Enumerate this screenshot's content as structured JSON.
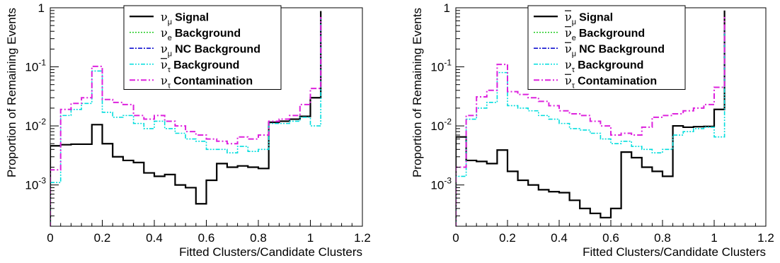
{
  "chart_data": [
    {
      "type": "step-histogram",
      "xlabel": "Fitted Clusters/Candidate Clusters",
      "ylabel": "Proportion of Remaining Events",
      "xlim": [
        0,
        1.2
      ],
      "ylim": [
        0.0002,
        1.0
      ],
      "yscale": "log",
      "x_ticks": [
        "0",
        "0.2",
        "0.4",
        "0.6",
        "0.8",
        "1",
        "1.2"
      ],
      "legend_position": "top-center",
      "bin_edges": [
        0,
        0.04,
        0.08,
        0.12,
        0.16,
        0.2,
        0.24,
        0.28,
        0.32,
        0.36,
        0.4,
        0.44,
        0.48,
        0.52,
        0.56,
        0.6,
        0.64,
        0.68,
        0.72,
        0.76,
        0.8,
        0.84,
        0.88,
        0.92,
        0.96,
        1.0,
        1.04
      ],
      "series": [
        {
          "label": "Signal",
          "nu": "ν",
          "bar": false,
          "sub": "μ",
          "color": "#000000",
          "dash": "",
          "width": 2.2,
          "values": [
            0.0046,
            0.0048,
            0.0049,
            0.0049,
            0.0105,
            0.005,
            0.003,
            0.0026,
            0.0024,
            0.0016,
            0.0014,
            0.0015,
            0.001,
            0.0009,
            0.00048,
            0.0012,
            0.0023,
            0.002,
            0.0021,
            0.002,
            0.0019,
            0.0115,
            0.012,
            0.013,
            0.0145,
            0.03,
            0.88
          ]
        },
        {
          "label": "Background",
          "nu": "ν",
          "bar": false,
          "sub": "e",
          "color": "#22cc22",
          "dash": "2,2",
          "width": 1.6,
          "values": [
            0.0,
            0.0,
            0.0,
            0.0,
            0.0,
            0.0,
            0.0,
            0.0,
            0.0,
            0.0,
            0.0,
            0.0,
            0.0,
            0.0,
            0.0,
            0.0,
            0.0,
            0.0,
            0.0,
            0.0,
            0.0,
            0.0,
            0.0,
            0.0,
            0.0,
            0.0,
            0.0
          ]
        },
        {
          "label": "NC Background",
          "nu": "ν",
          "bar": false,
          "sub": "μ",
          "color": "#0000cc",
          "dash": "6,2,2,2",
          "width": 1.6,
          "values": [
            0.0,
            0.0,
            0.0,
            0.0,
            0.0,
            0.0,
            0.0,
            0.0,
            0.0,
            0.0,
            0.0,
            0.0,
            0.0,
            0.0,
            0.0,
            0.0,
            0.0,
            0.0,
            0.0,
            0.0,
            0.0,
            0.0,
            0.0,
            0.0,
            0.0,
            0.0,
            0.0
          ]
        },
        {
          "label": "Background",
          "nu": "ν",
          "bar": true,
          "sub": "τ",
          "color": "#00dddd",
          "dash": "6,2,2,2,2,2",
          "width": 1.6,
          "values": [
            0.0011,
            0.015,
            0.019,
            0.024,
            0.085,
            0.017,
            0.014,
            0.015,
            0.011,
            0.009,
            0.012,
            0.009,
            0.0075,
            0.006,
            0.0055,
            0.004,
            0.004,
            0.0035,
            0.0045,
            0.0037,
            0.004,
            0.011,
            0.011,
            0.012,
            0.014,
            0.01,
            0.65
          ]
        },
        {
          "label": "Contamination",
          "nu": "ν",
          "bar": false,
          "sub": "τ",
          "color": "#dd22dd",
          "dash": "8,3,2,3",
          "width": 2.0,
          "values": [
            0.0018,
            0.019,
            0.024,
            0.03,
            0.102,
            0.028,
            0.025,
            0.023,
            0.015,
            0.013,
            0.015,
            0.012,
            0.01,
            0.008,
            0.007,
            0.006,
            0.0055,
            0.005,
            0.0065,
            0.006,
            0.007,
            0.012,
            0.013,
            0.015,
            0.023,
            0.043,
            0.7
          ]
        }
      ]
    },
    {
      "type": "step-histogram",
      "xlabel": "Fitted Clusters/Candidate Clusters",
      "ylabel": "Proportion of Remaining Events",
      "xlim": [
        0,
        1.2
      ],
      "ylim": [
        0.0002,
        1.0
      ],
      "yscale": "log",
      "x_ticks": [
        "0",
        "0.2",
        "0.4",
        "0.6",
        "0.8",
        "1",
        "1.2"
      ],
      "legend_position": "top-center",
      "bin_edges": [
        0,
        0.04,
        0.08,
        0.12,
        0.16,
        0.2,
        0.24,
        0.28,
        0.32,
        0.36,
        0.4,
        0.44,
        0.48,
        0.52,
        0.56,
        0.6,
        0.64,
        0.68,
        0.72,
        0.76,
        0.8,
        0.84,
        0.88,
        0.92,
        0.96,
        1.0,
        1.04
      ],
      "series": [
        {
          "label": "Signal",
          "nu": "ν",
          "bar": true,
          "sub": "μ",
          "color": "#000000",
          "dash": "",
          "width": 2.2,
          "values": [
            0.0065,
            0.0026,
            0.0025,
            0.0023,
            0.0039,
            0.0017,
            0.0012,
            0.001,
            0.00083,
            0.00077,
            0.00074,
            0.00055,
            0.0004,
            0.00033,
            0.00028,
            0.0004,
            0.0036,
            0.0029,
            0.002,
            0.0017,
            0.0014,
            0.01,
            0.0095,
            0.0097,
            0.0098,
            0.019,
            0.9
          ]
        },
        {
          "label": "Background",
          "nu": "ν",
          "bar": true,
          "sub": "e",
          "color": "#22cc22",
          "dash": "2,2",
          "width": 1.6,
          "values": [
            0.0,
            0.0,
            0.0,
            0.0,
            0.0,
            0.0,
            0.0,
            0.0,
            0.0,
            0.0,
            0.0,
            0.0,
            0.0,
            0.0,
            0.0,
            0.0,
            0.0,
            0.0,
            0.0,
            0.0,
            0.0,
            0.0,
            0.0,
            0.0,
            0.0,
            0.0,
            0.0
          ]
        },
        {
          "label": "NC Background",
          "nu": "ν",
          "bar": true,
          "sub": "μ",
          "color": "#0000cc",
          "dash": "6,2,2,2",
          "width": 1.6,
          "values": [
            0.0,
            0.0,
            0.0,
            0.0,
            0.0,
            0.0,
            0.0,
            0.0,
            0.0,
            0.0,
            0.0,
            0.0,
            0.0,
            0.0,
            0.0,
            0.0,
            0.0,
            0.0,
            0.0,
            0.0,
            0.0,
            0.0,
            0.0,
            0.0,
            0.0,
            0.0,
            0.0
          ]
        },
        {
          "label": "Background",
          "nu": "ν",
          "bar": false,
          "sub": "τ",
          "color": "#00dddd",
          "dash": "6,2,2,2,2,2",
          "width": 1.6,
          "values": [
            0.0014,
            0.013,
            0.02,
            0.025,
            0.08,
            0.022,
            0.02,
            0.018,
            0.015,
            0.013,
            0.011,
            0.009,
            0.0085,
            0.0075,
            0.006,
            0.005,
            0.0055,
            0.0045,
            0.004,
            0.0035,
            0.004,
            0.007,
            0.008,
            0.009,
            0.0095,
            0.0065,
            0.5
          ]
        },
        {
          "label": "Contamination",
          "nu": "ν",
          "bar": true,
          "sub": "τ",
          "color": "#dd22dd",
          "dash": "8,3,2,3",
          "width": 2.0,
          "values": [
            0.002,
            0.015,
            0.031,
            0.04,
            0.11,
            0.038,
            0.034,
            0.03,
            0.026,
            0.022,
            0.018,
            0.016,
            0.015,
            0.012,
            0.01,
            0.007,
            0.0075,
            0.007,
            0.0095,
            0.014,
            0.015,
            0.016,
            0.018,
            0.02,
            0.023,
            0.045,
            0.7
          ]
        }
      ]
    }
  ]
}
